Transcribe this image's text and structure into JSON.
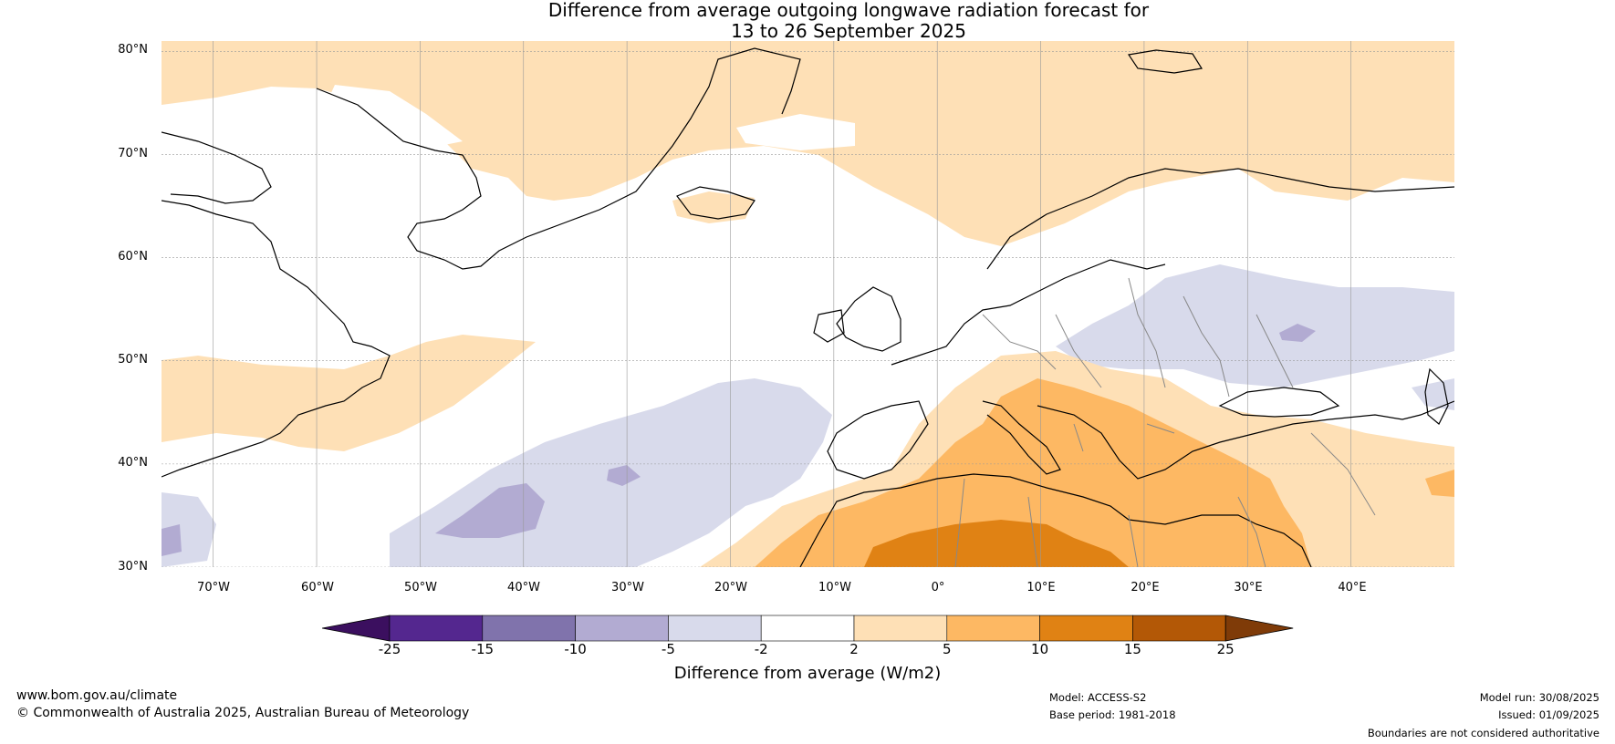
{
  "title": {
    "line1": "Difference from average outgoing longwave radiation forecast for",
    "line2": "13 to 26 September 2025"
  },
  "map": {
    "projection": "equirectangular",
    "lon_range": [
      -75,
      50
    ],
    "lat_range": [
      30,
      81
    ],
    "lat_labels": [
      "80°N",
      "70°N",
      "60°N",
      "50°N",
      "40°N",
      "30°N"
    ],
    "lon_labels": [
      "70°W",
      "60°W",
      "50°W",
      "40°W",
      "30°W",
      "20°W",
      "10°W",
      "0°",
      "10°E",
      "20°E",
      "30°E",
      "40°E"
    ],
    "gridlines": true,
    "land_outline_color": "#000000",
    "border_color": "#888888"
  },
  "colorbar": {
    "ticks": [
      "-25",
      "-15",
      "-10",
      "-5",
      "-2",
      "2",
      "5",
      "10",
      "15",
      "25"
    ],
    "colors": [
      "#3b0f5f",
      "#54278f",
      "#8073ac",
      "#b2abd2",
      "#d8daeb",
      "#ffffff",
      "#fee0b6",
      "#fdb863",
      "#e08214",
      "#b35806",
      "#7f3b08"
    ],
    "label": "Difference from average (W/m2)",
    "extend": "both"
  },
  "footer": {
    "website": "www.bom.gov.au/climate",
    "copyright": "© Commonwealth of Australia 2025, Australian Bureau of Meteorology",
    "model": "Model: ACCESS-S2",
    "base_period": "Base period: 1981-2018",
    "model_run": "Model run: 30/08/2025",
    "issued": "Issued: 01/09/2025",
    "disclaimer": "Boundaries are not considered authoritative"
  }
}
